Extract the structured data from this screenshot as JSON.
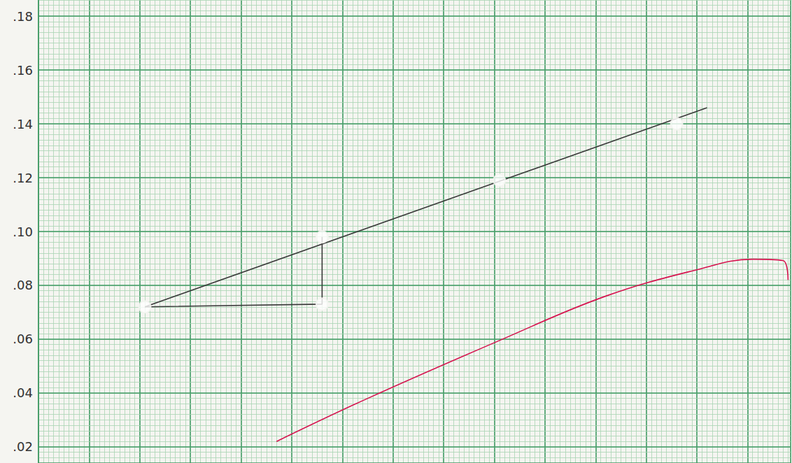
{
  "chart_data": {
    "type": "line",
    "xlim": [
      0,
      14.85
    ],
    "xticks": [
      0,
      1,
      2,
      3,
      4,
      5,
      6,
      7,
      8,
      9,
      10,
      11,
      12,
      13,
      14
    ],
    "ylim": [
      0.014,
      0.186
    ],
    "yticks": [
      {
        "value": 0.02,
        "label": ".02"
      },
      {
        "value": 0.04,
        "label": ".04"
      },
      {
        "value": 0.06,
        "label": ".06"
      },
      {
        "value": 0.08,
        "label": ".08"
      },
      {
        "value": 0.1,
        "label": ".10"
      },
      {
        "value": 0.12,
        "label": ".12"
      },
      {
        "value": 0.14,
        "label": ".14"
      },
      {
        "value": 0.16,
        "label": ".16"
      },
      {
        "value": 0.18,
        "label": ".18"
      }
    ],
    "grid": true,
    "tick_labels": "y",
    "series": [
      {
        "type": "line",
        "color": "#3a3a3a",
        "marker": "none",
        "line_style": "solid",
        "x": [
          2.1,
          13.2
        ],
        "values": [
          0.072,
          0.146
        ]
      },
      {
        "type": "line",
        "color": "#3a3a3a",
        "marker": "none",
        "line_style": "solid",
        "x": [
          2.1,
          5.6,
          5.6
        ],
        "values": [
          0.072,
          0.073,
          0.098
        ]
      },
      {
        "type": "scatter",
        "color": "#222222",
        "marker": "circle",
        "x": [
          2.1,
          5.6,
          5.6,
          9.1,
          12.6
        ],
        "values": [
          0.072,
          0.073,
          0.098,
          0.119,
          0.14
        ]
      },
      {
        "type": "line",
        "color": "#d6124e",
        "marker": "none",
        "line_style": "solid",
        "x": [
          4.7,
          6.5,
          9.1,
          11.2,
          13.0,
          14.1,
          14.7,
          14.8
        ],
        "values": [
          0.022,
          0.038,
          0.0595,
          0.076,
          0.0858,
          0.0897,
          0.0892,
          0.082
        ]
      }
    ]
  }
}
